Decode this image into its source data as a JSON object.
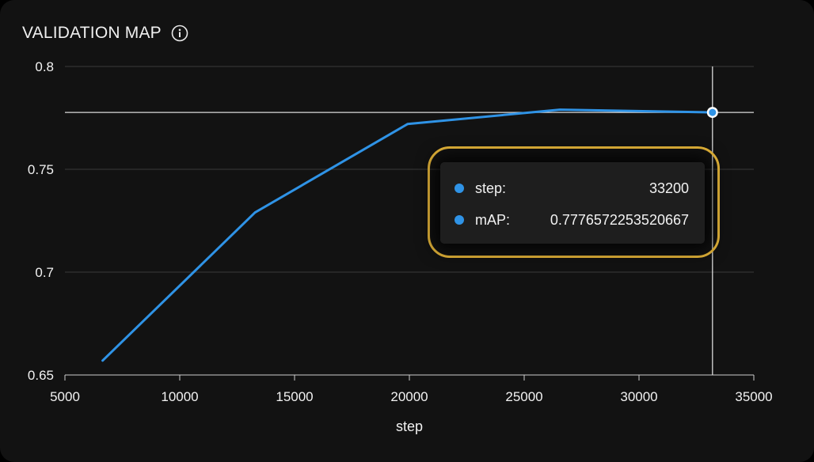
{
  "header": {
    "title": "VALIDATION MAP",
    "info_icon": "info-icon"
  },
  "colors": {
    "background": "#121212",
    "series": "#2f93e6",
    "grid": "#3a3a3a",
    "crosshair": "#d9d9d9",
    "highlight": "#f2bf3c"
  },
  "chart_data": {
    "type": "line",
    "title": "VALIDATION MAP",
    "xlabel": "step",
    "ylabel": "",
    "xlim": [
      5000,
      35000
    ],
    "ylim": [
      0.65,
      0.8
    ],
    "x_ticks": [
      5000,
      10000,
      15000,
      20000,
      25000,
      30000,
      35000
    ],
    "y_ticks": [
      0.65,
      0.7,
      0.75,
      0.8
    ],
    "grid": "horizontal",
    "series": [
      {
        "x": [
          6640,
          13280,
          19920,
          26560,
          33200
        ],
        "y": [
          0.657,
          0.729,
          0.772,
          0.779,
          0.7776572253520667
        ]
      }
    ],
    "hover": {
      "x": 33200,
      "y": 0.7776572253520667
    }
  },
  "tooltip": {
    "rows": [
      {
        "key": "step:",
        "value": "33200"
      },
      {
        "key": "mAP:",
        "value": "0.7776572253520667"
      }
    ]
  }
}
